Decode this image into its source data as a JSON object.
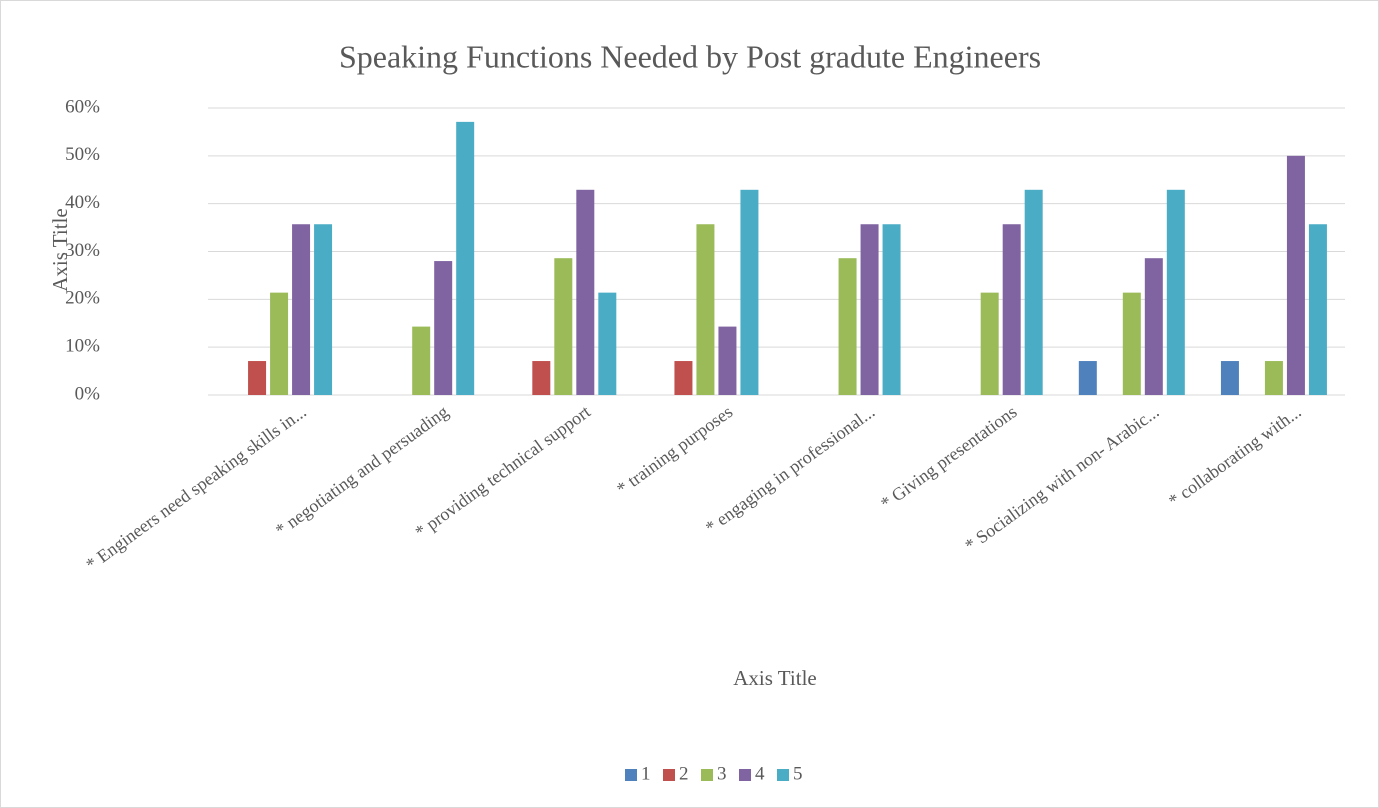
{
  "chart_data": {
    "type": "bar",
    "title": "Speaking Functions Needed by Post gradute Engineers",
    "x_label": "Axis Title",
    "y_label": "Axis Title",
    "categories": [
      "* Engineers need speaking skills in...",
      "* negotiating and persuading",
      "* providing technical support",
      "* training purposes",
      "* engaging in professional...",
      "* Giving presentations",
      "* Socializing with non- Arabic...",
      "* collaborating with..."
    ],
    "series": [
      {
        "name": "1",
        "color": "#4f81bd",
        "values": [
          0,
          0,
          0,
          0,
          0,
          0,
          7.1,
          7.1
        ]
      },
      {
        "name": "2",
        "color": "#c0504d",
        "values": [
          7.1,
          0,
          7.1,
          7.1,
          0,
          0,
          0,
          0
        ]
      },
      {
        "name": "3",
        "color": "#9bbb59",
        "values": [
          21.4,
          14.3,
          28.6,
          35.7,
          28.6,
          21.4,
          21.4,
          7.1
        ]
      },
      {
        "name": "4",
        "color": "#8064a2",
        "values": [
          35.7,
          28,
          42.9,
          14.3,
          35.7,
          35.7,
          28.6,
          50
        ]
      },
      {
        "name": "5",
        "color": "#4bacc6",
        "values": [
          35.7,
          57.1,
          21.4,
          42.9,
          35.7,
          42.9,
          42.9,
          35.7
        ]
      }
    ],
    "ylim": [
      0,
      60
    ],
    "yticks": [
      {
        "value": 0,
        "label": "0%"
      },
      {
        "value": 10,
        "label": "10%"
      },
      {
        "value": 20,
        "label": "20%"
      },
      {
        "value": 30,
        "label": "30%"
      },
      {
        "value": 40,
        "label": "40%"
      },
      {
        "value": 50,
        "label": "50%"
      },
      {
        "value": 60,
        "label": "60%"
      }
    ],
    "grid": true,
    "legend": "bottom"
  }
}
